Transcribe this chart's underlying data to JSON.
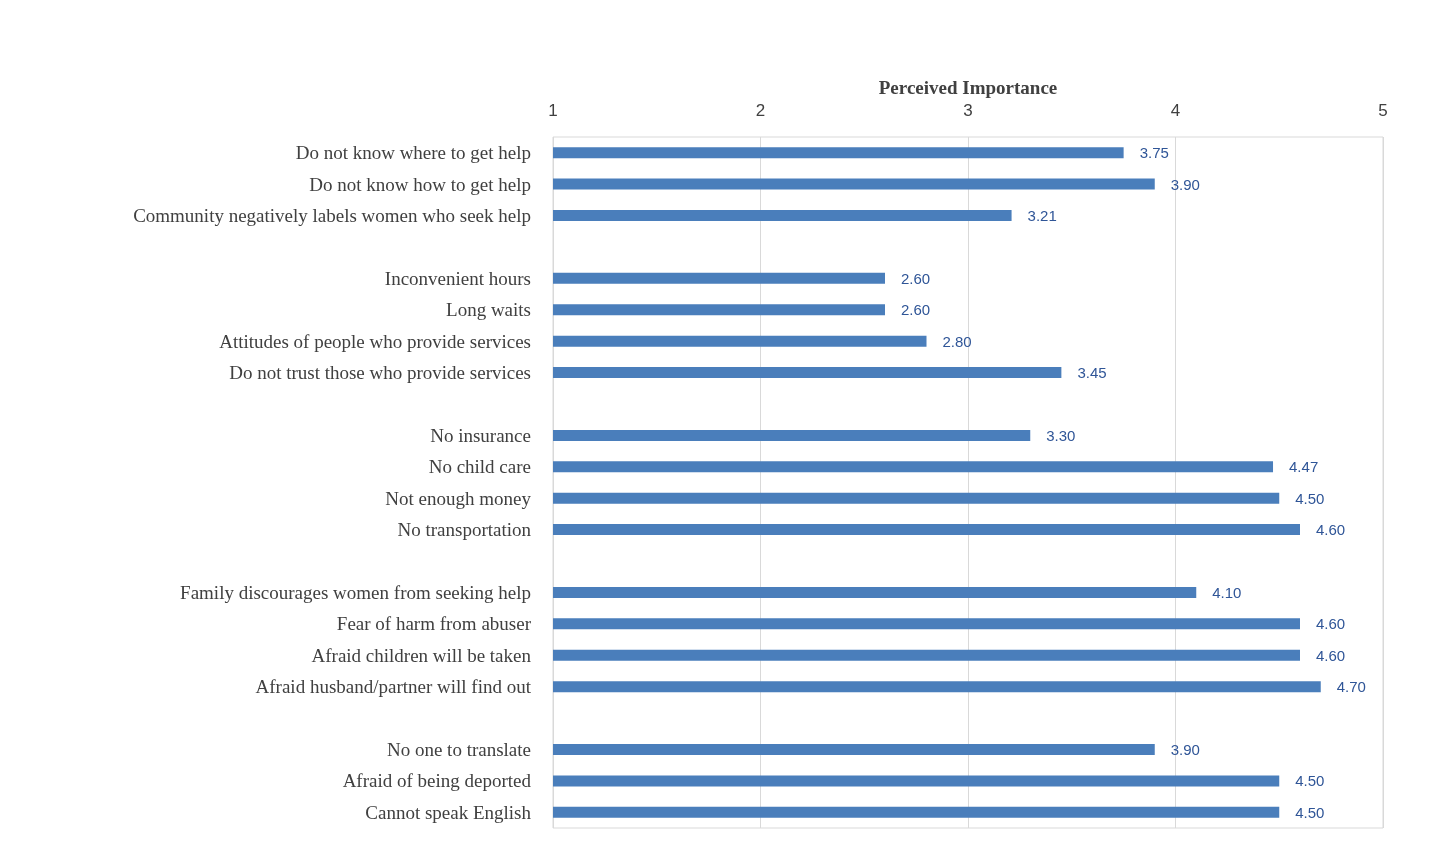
{
  "chart_data": {
    "type": "bar",
    "orientation": "horizontal",
    "xlabel": "Perceived Importance",
    "categories": [
      "Do not know where to get help",
      "Do not know how to get help",
      "Community negatively labels women who seek help",
      null,
      "Inconvenient hours",
      "Long waits",
      "Attitudes of people who provide services",
      "Do not trust those who provide services",
      null,
      "No insurance",
      "No child care",
      "Not enough money",
      "No transportation",
      null,
      "Family discourages women from seeking help",
      "Fear of harm from abuser",
      "Afraid children will be taken",
      "Afraid husband/partner will find out",
      null,
      "No one to translate",
      "Afraid of being deported",
      "Cannot speak English"
    ],
    "values": [
      3.75,
      3.9,
      3.21,
      null,
      2.6,
      2.6,
      2.8,
      3.45,
      null,
      3.3,
      4.47,
      4.5,
      4.6,
      null,
      4.1,
      4.6,
      4.6,
      4.7,
      null,
      3.9,
      4.5,
      4.5
    ],
    "value_labels": [
      "3.75",
      "3.90",
      "3.21",
      null,
      "2.60",
      "2.60",
      "2.80",
      "3.45",
      null,
      "3.30",
      "4.47",
      "4.50",
      "4.60",
      null,
      "4.10",
      "4.60",
      "4.60",
      "4.70",
      null,
      "3.90",
      "4.50",
      "4.50"
    ],
    "color": "#4a7ebb",
    "xlim": [
      1,
      5
    ],
    "xticks": [
      1,
      2,
      3,
      4,
      5
    ],
    "grid": "x"
  }
}
